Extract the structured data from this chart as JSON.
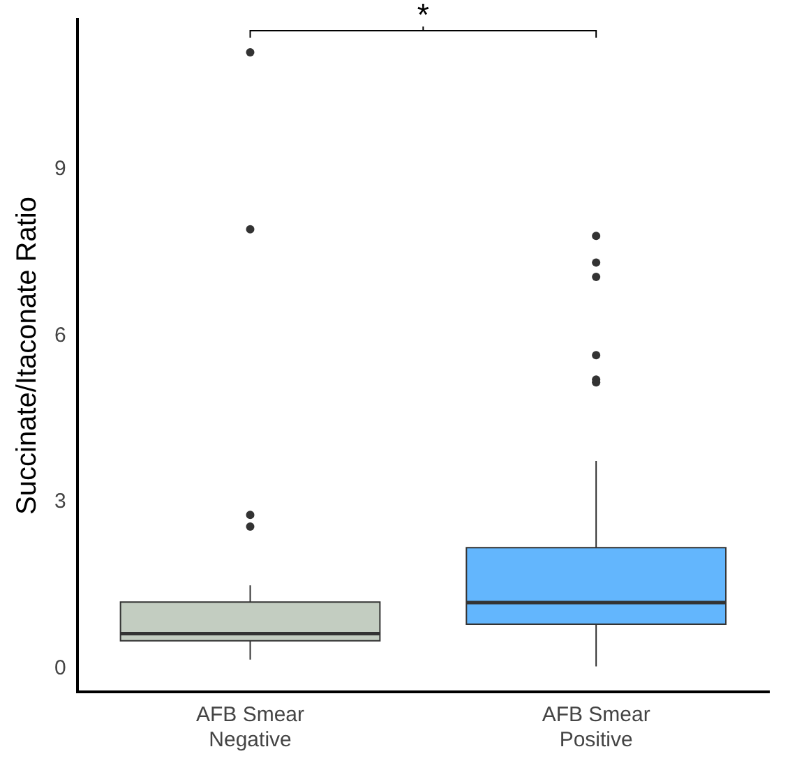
{
  "chart_data": {
    "type": "box",
    "categories": [
      "AFB Smear\nNegative",
      "AFB Smear\nPositive"
    ],
    "ylabel": "Succinate/Itaconate Ratio",
    "colors": [
      "#c3cdc1",
      "#63b6fd"
    ],
    "boxes": [
      {
        "low": 0.16,
        "q1": 0.5,
        "median": 0.63,
        "q3": 1.2,
        "high": 1.5,
        "outliers": [
          11.11,
          7.92,
          2.77,
          2.56
        ]
      },
      {
        "low": 0.04,
        "q1": 0.8,
        "median": 1.19,
        "q3": 2.18,
        "high": 3.74,
        "outliers": [
          7.8,
          7.32,
          7.06,
          5.65,
          5.21,
          5.16
        ]
      }
    ],
    "ylim": [
      -0.42,
      11.7
    ],
    "yticks": [
      0,
      3,
      6,
      9
    ],
    "grid": false,
    "legend": false,
    "annotations": [
      "*"
    ]
  }
}
